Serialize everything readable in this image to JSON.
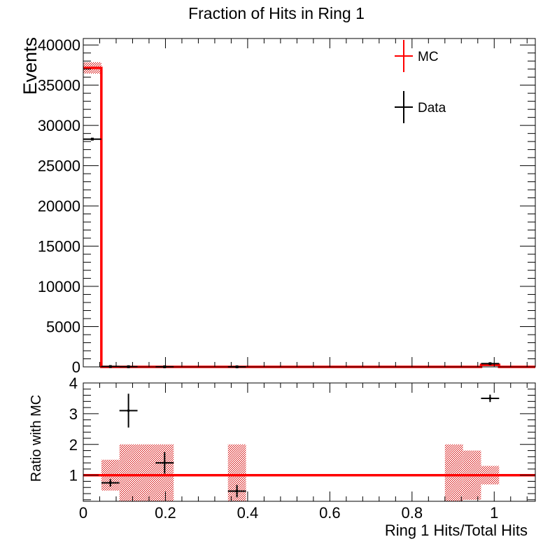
{
  "chart_data": {
    "type": "histogram",
    "title": "Fraction of Hits in Ring 1",
    "xlabel": "Ring 1 Hits/Total Hits",
    "xlim": [
      0,
      1.1
    ],
    "x_tick_labels": [
      "0",
      "0.2",
      "0.4",
      "0.6",
      "0.8",
      "1"
    ],
    "top_panel": {
      "ylabel": "Events",
      "ylim": [
        0,
        40800
      ],
      "y_tick_labels": [
        "0",
        "5000",
        "10000",
        "15000",
        "20000",
        "25000",
        "30000",
        "35000",
        "40000"
      ],
      "legend": {
        "position": "top-right",
        "entries": [
          "MC",
          "Data"
        ]
      },
      "series": [
        {
          "name": "MC",
          "kind": "histogram",
          "color": "#ff0000",
          "bin_edges": [
            0,
            0.044,
            0.968,
            1.012,
            1.1
          ],
          "values": [
            37150,
            0,
            250,
            0
          ],
          "uncertainty": [
            700,
            0,
            0,
            0
          ]
        },
        {
          "name": "Data",
          "kind": "points",
          "color": "#000000",
          "points": [
            {
              "x": 0.022,
              "x_err": 0.022,
              "y": 28300
            },
            {
              "x": 0.066,
              "x_err": 0.022,
              "y": 40
            },
            {
              "x": 0.11,
              "x_err": 0.022,
              "y": 20
            },
            {
              "x": 0.198,
              "x_err": 0.022,
              "y": 10
            },
            {
              "x": 0.374,
              "x_err": 0.022,
              "y": 5
            },
            {
              "x": 0.99,
              "x_err": 0.022,
              "y": 400
            }
          ]
        }
      ]
    },
    "bottom_panel": {
      "ylabel": "Ratio with MC",
      "ylim": [
        0.15,
        4.0
      ],
      "y_tick_labels": [
        "1",
        "2",
        "3",
        "4"
      ],
      "reference_line": {
        "y": 1,
        "color": "#ff0000"
      },
      "mc_uncertainty_bands": [
        {
          "x0": 0.044,
          "x1": 0.088,
          "lo": 0.5,
          "hi": 1.5
        },
        {
          "x0": 0.088,
          "x1": 0.22,
          "lo": 0.15,
          "hi": 2.0
        },
        {
          "x0": 0.352,
          "x1": 0.396,
          "lo": 0.15,
          "hi": 2.0
        },
        {
          "x0": 0.88,
          "x1": 0.924,
          "lo": 0.15,
          "hi": 2.0
        },
        {
          "x0": 0.924,
          "x1": 0.968,
          "lo": 0.2,
          "hi": 1.8
        },
        {
          "x0": 0.968,
          "x1": 1.012,
          "lo": 0.7,
          "hi": 1.3
        }
      ],
      "points": [
        {
          "x": 0.066,
          "x_err": 0.022,
          "y": 0.75,
          "y_err": 0.12
        },
        {
          "x": 0.11,
          "x_err": 0.022,
          "y": 3.1,
          "y_err": 0.55
        },
        {
          "x": 0.198,
          "x_err": 0.022,
          "y": 1.4,
          "y_err": 0.35
        },
        {
          "x": 0.374,
          "x_err": 0.022,
          "y": 0.48,
          "y_err": 0.2
        },
        {
          "x": 0.99,
          "x_err": 0.022,
          "y": 3.5,
          "y_err": 0.12
        }
      ]
    }
  }
}
